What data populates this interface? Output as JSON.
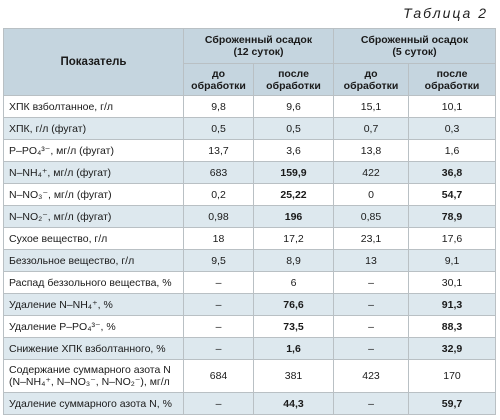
{
  "caption": "Таблица 2",
  "headers": {
    "param": "Показатель",
    "group1": "Сброженный осадок\n(12 суток)",
    "group2": "Сброженный осадок\n(5 суток)",
    "before": "до\nобработки",
    "after": "после\nобработки"
  },
  "rows": [
    {
      "label": "ХПК взболтанное, г/л",
      "v": [
        "9,8",
        "9,6",
        "15,1",
        "10,1"
      ]
    },
    {
      "label": "ХПК, г/л (фугат)",
      "v": [
        "0,5",
        "0,5",
        "0,7",
        "0,3"
      ]
    },
    {
      "label": "P–PO₄³⁻, мг/л (фугат)",
      "v": [
        "13,7",
        "3,6",
        "13,8",
        "1,6"
      ]
    },
    {
      "label": "N–NH₄⁺, мг/л (фугат)",
      "v": [
        "683",
        "159,9",
        "422",
        "36,8"
      ]
    },
    {
      "label": "N–NO₃⁻, мг/л (фугат)",
      "v": [
        "0,2",
        "25,22",
        "0",
        "54,7"
      ]
    },
    {
      "label": "N–NO₂⁻, мг/л (фугат)",
      "v": [
        "0,98",
        "196",
        "0,85",
        "78,9"
      ]
    },
    {
      "label": "Сухое вещество, г/л",
      "v": [
        "18",
        "17,2",
        "23,1",
        "17,6"
      ]
    },
    {
      "label": "Беззольное вещество, г/л",
      "v": [
        "9,5",
        "8,9",
        "13",
        "9,1"
      ]
    },
    {
      "label": "Распад беззольного вещества, %",
      "v": [
        "–",
        "6",
        "–",
        "30,1"
      ]
    },
    {
      "label": "Удаление N–NH₄⁺, %",
      "v": [
        "–",
        "76,6",
        "–",
        "91,3"
      ]
    },
    {
      "label": "Удаление P–PO₄³⁻, %",
      "v": [
        "–",
        "73,5",
        "–",
        "88,3"
      ]
    },
    {
      "label": "Снижение ХПК взболтанного, %",
      "v": [
        "–",
        "1,6",
        "–",
        "32,9"
      ]
    },
    {
      "label": "Содержание суммарного азота N\n(N–NH₄⁺, N–NO₃⁻, N–NO₂⁻), мг/л",
      "v": [
        "684",
        "381",
        "423",
        "170"
      ]
    },
    {
      "label": "Удаление суммарного азота N, %",
      "v": [
        "–",
        "44,3",
        "–",
        "59,7"
      ]
    }
  ]
}
